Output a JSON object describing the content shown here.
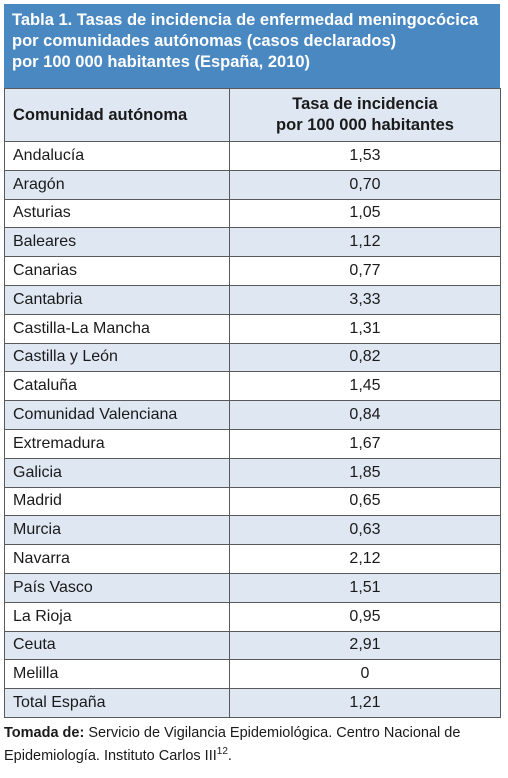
{
  "title": {
    "line1": "Tabla 1. Tasas de incidencia de enfermedad meningocócica",
    "line2": "por comunidades autónomas (casos declarados)",
    "line3": "por 100 000 habitantes (España, 2010)"
  },
  "table": {
    "header_col1": "Comunidad autónoma",
    "header_col2_line1": "Tasa de incidencia",
    "header_col2_line2": "por 100 000 habitantes",
    "rows": [
      {
        "name": "Andalucía",
        "value": "1,53"
      },
      {
        "name": "Aragón",
        "value": "0,70"
      },
      {
        "name": "Asturias",
        "value": "1,05"
      },
      {
        "name": "Baleares",
        "value": "1,12"
      },
      {
        "name": "Canarias",
        "value": "0,77"
      },
      {
        "name": "Cantabria",
        "value": "3,33"
      },
      {
        "name": "Castilla-La Mancha",
        "value": "1,31"
      },
      {
        "name": "Castilla y León",
        "value": "0,82"
      },
      {
        "name": "Cataluña",
        "value": "1,45"
      },
      {
        "name": "Comunidad Valenciana",
        "value": "0,84"
      },
      {
        "name": "Extremadura",
        "value": "1,67"
      },
      {
        "name": "Galicia",
        "value": "1,85"
      },
      {
        "name": "Madrid",
        "value": "0,65"
      },
      {
        "name": "Murcia",
        "value": "0,63"
      },
      {
        "name": "Navarra",
        "value": "2,12"
      },
      {
        "name": "País Vasco",
        "value": "1,51"
      },
      {
        "name": "La Rioja",
        "value": "0,95"
      },
      {
        "name": "Ceuta",
        "value": "2,91"
      },
      {
        "name": "Melilla",
        "value": "0"
      },
      {
        "name": "Total España",
        "value": "1,21"
      }
    ]
  },
  "source": {
    "label": "Tomada de:",
    "line1": " Servicio de Vigilancia Epidemiológica. Centro Nacional de",
    "line2": "Epidemiología. Instituto Carlos III",
    "ref": "12",
    "end": "."
  },
  "colors": {
    "title_bg": "#4a88c2",
    "shade_row": "#dfe7f2",
    "border": "#5a5a5a"
  }
}
